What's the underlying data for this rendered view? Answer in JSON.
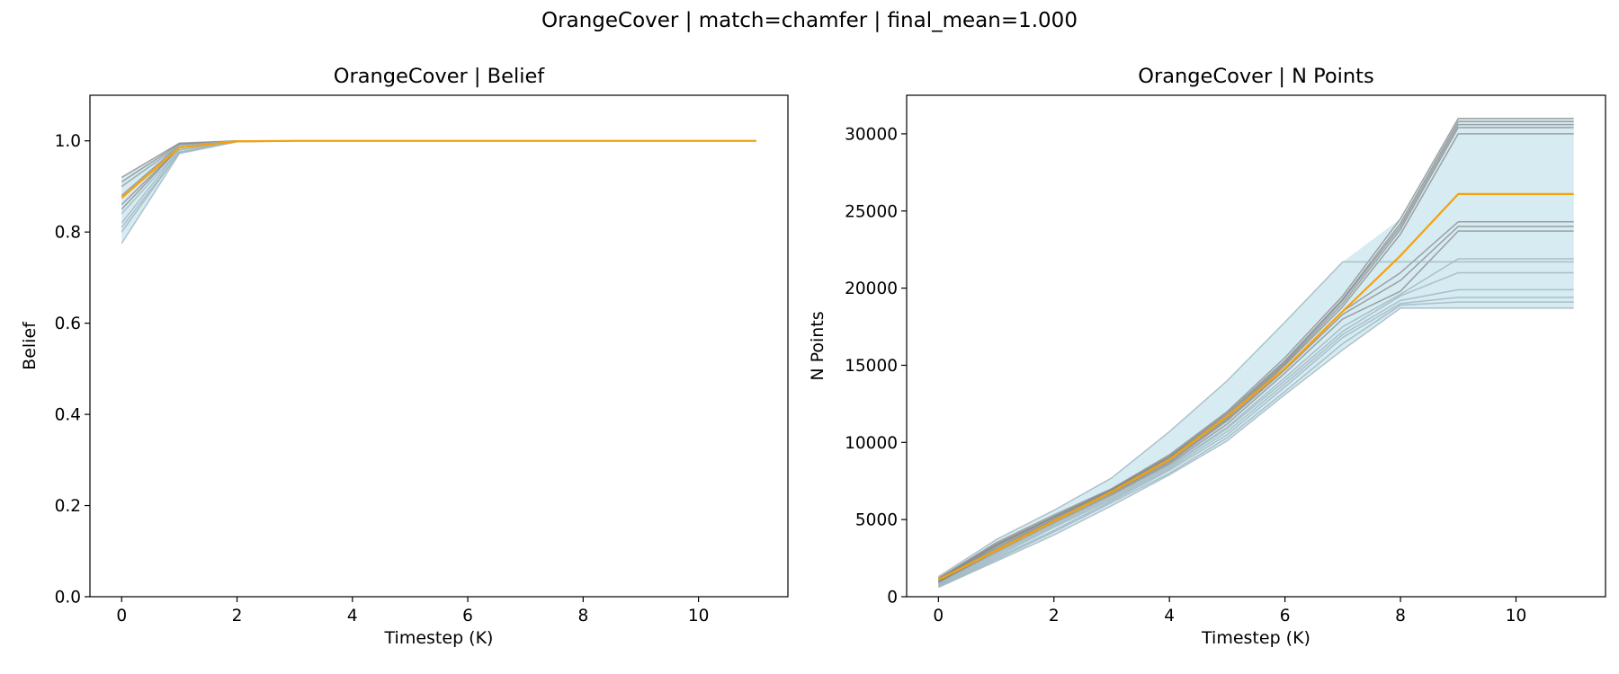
{
  "suptitle": "OrangeCover | match=chamfer | final_mean=1.000",
  "colors": {
    "mean": "#f5a20a",
    "individual_grey": "#808080",
    "individual_blue": "#9db5bf",
    "band_fill": "#add8e6"
  },
  "chart_data": [
    {
      "type": "line",
      "title": "OrangeCover | Belief",
      "xlabel": "Timestep (K)",
      "ylabel": "Belief",
      "xlim": [
        -0.55,
        11.55
      ],
      "ylim": [
        0.0,
        1.1
      ],
      "xticks": [
        0,
        2,
        4,
        6,
        8,
        10
      ],
      "yticks": [
        0.0,
        0.2,
        0.4,
        0.6,
        0.8,
        1.0
      ],
      "ytick_labels": [
        "0.0",
        "0.2",
        "0.4",
        "0.6",
        "0.8",
        "1.0"
      ],
      "x": [
        0,
        1,
        2,
        3,
        4,
        5,
        6,
        7,
        8,
        9,
        10,
        11
      ],
      "band": {
        "lower": [
          0.775,
          0.972,
          0.998,
          1.0,
          1.0,
          1.0,
          1.0,
          1.0,
          1.0,
          1.0,
          1.0,
          1.0
        ],
        "upper": [
          0.92,
          0.995,
          1.0,
          1.0,
          1.0,
          1.0,
          1.0,
          1.0,
          1.0,
          1.0,
          1.0,
          1.0
        ]
      },
      "runs": [
        {
          "style": "grey",
          "values": [
            0.92,
            0.995,
            1.0,
            1.0,
            1.0,
            1.0,
            1.0,
            1.0,
            1.0,
            1.0,
            1.0,
            1.0
          ]
        },
        {
          "style": "grey",
          "values": [
            0.91,
            0.993,
            1.0,
            1.0,
            1.0,
            1.0,
            1.0,
            1.0,
            1.0,
            1.0,
            1.0,
            1.0
          ]
        },
        {
          "style": "grey",
          "values": [
            0.9,
            0.99,
            1.0,
            1.0,
            1.0,
            1.0,
            1.0,
            1.0,
            1.0,
            1.0,
            1.0,
            1.0
          ]
        },
        {
          "style": "grey",
          "values": [
            0.88,
            0.99,
            1.0,
            1.0,
            1.0,
            1.0,
            1.0,
            1.0,
            1.0,
            1.0,
            1.0,
            1.0
          ]
        },
        {
          "style": "grey",
          "values": [
            0.86,
            0.985,
            1.0,
            1.0,
            1.0,
            1.0,
            1.0,
            1.0,
            1.0,
            1.0,
            1.0,
            1.0
          ]
        },
        {
          "style": "grey",
          "values": [
            0.85,
            0.985,
            1.0,
            1.0,
            1.0,
            1.0,
            1.0,
            1.0,
            1.0,
            1.0,
            1.0,
            1.0
          ]
        },
        {
          "style": "blue",
          "values": [
            0.9,
            0.99,
            1.0,
            1.0,
            1.0,
            1.0,
            1.0,
            1.0,
            1.0,
            1.0,
            1.0,
            1.0
          ]
        },
        {
          "style": "blue",
          "values": [
            0.84,
            0.98,
            1.0,
            1.0,
            1.0,
            1.0,
            1.0,
            1.0,
            1.0,
            1.0,
            1.0,
            1.0
          ]
        },
        {
          "style": "blue",
          "values": [
            0.82,
            0.98,
            0.999,
            1.0,
            1.0,
            1.0,
            1.0,
            1.0,
            1.0,
            1.0,
            1.0,
            1.0
          ]
        },
        {
          "style": "blue",
          "values": [
            0.81,
            0.975,
            0.999,
            1.0,
            1.0,
            1.0,
            1.0,
            1.0,
            1.0,
            1.0,
            1.0,
            1.0
          ]
        },
        {
          "style": "blue",
          "values": [
            0.8,
            0.975,
            0.998,
            1.0,
            1.0,
            1.0,
            1.0,
            1.0,
            1.0,
            1.0,
            1.0,
            1.0
          ]
        },
        {
          "style": "blue",
          "values": [
            0.775,
            0.972,
            0.998,
            1.0,
            1.0,
            1.0,
            1.0,
            1.0,
            1.0,
            1.0,
            1.0,
            1.0
          ]
        }
      ],
      "mean": [
        0.875,
        0.985,
        0.999,
        1.0,
        1.0,
        1.0,
        1.0,
        1.0,
        1.0,
        1.0,
        1.0,
        1.0
      ]
    },
    {
      "type": "line",
      "title": "OrangeCover | N Points",
      "xlabel": "Timestep (K)",
      "ylabel": "N Points",
      "xlim": [
        -0.55,
        11.55
      ],
      "ylim": [
        0,
        32500
      ],
      "xticks": [
        0,
        2,
        4,
        6,
        8,
        10
      ],
      "yticks": [
        0,
        5000,
        10000,
        15000,
        20000,
        25000,
        30000
      ],
      "ytick_labels": [
        "0",
        "5000",
        "10000",
        "15000",
        "20000",
        "25000",
        "30000"
      ],
      "x": [
        0,
        1,
        2,
        3,
        4,
        5,
        6,
        7,
        8,
        9,
        10,
        11
      ],
      "band": {
        "lower": [
          600,
          2300,
          4000,
          5900,
          7900,
          10100,
          13100,
          16000,
          18700,
          18700,
          18700,
          18700
        ],
        "upper": [
          1300,
          3700,
          5600,
          7700,
          10700,
          14000,
          17800,
          21700,
          24500,
          31000,
          31000,
          31000
        ]
      },
      "runs": [
        {
          "style": "grey",
          "values": [
            1200,
            3500,
            5300,
            7000,
            9200,
            12000,
            15500,
            19500,
            24500,
            31000,
            31000,
            31000
          ]
        },
        {
          "style": "grey",
          "values": [
            1150,
            3400,
            5200,
            6950,
            9100,
            11900,
            15300,
            19300,
            24200,
            30800,
            30800,
            30800
          ]
        },
        {
          "style": "grey",
          "values": [
            1100,
            3350,
            5150,
            6900,
            9050,
            11800,
            15200,
            19200,
            24000,
            30600,
            30600,
            30600
          ]
        },
        {
          "style": "grey",
          "values": [
            1050,
            3300,
            5100,
            6850,
            9000,
            11700,
            15100,
            19000,
            23800,
            30400,
            30400,
            30400
          ]
        },
        {
          "style": "grey",
          "values": [
            1000,
            3200,
            5000,
            6800,
            8900,
            11600,
            15000,
            18800,
            23500,
            30000,
            30000,
            30000
          ]
        },
        {
          "style": "grey",
          "values": [
            1000,
            3100,
            4950,
            6750,
            8800,
            11500,
            14800,
            18500,
            21000,
            24300,
            24300,
            24300
          ]
        },
        {
          "style": "grey",
          "values": [
            950,
            3000,
            4900,
            6700,
            8700,
            11400,
            14700,
            18300,
            20500,
            24000,
            24000,
            24000
          ]
        },
        {
          "style": "grey",
          "values": [
            900,
            2900,
            4800,
            6600,
            8600,
            11200,
            14500,
            18000,
            19800,
            23700,
            23700,
            23700
          ]
        },
        {
          "style": "blue",
          "values": [
            1300,
            3700,
            5600,
            7700,
            10700,
            14000,
            17800,
            21700,
            21700,
            21700,
            21700,
            21700
          ]
        },
        {
          "style": "blue",
          "values": [
            850,
            2800,
            4700,
            6500,
            8500,
            11000,
            14200,
            17500,
            19600,
            21900,
            21900,
            21900
          ]
        },
        {
          "style": "blue",
          "values": [
            800,
            2700,
            4600,
            6400,
            8400,
            10900,
            14000,
            17200,
            19500,
            21000,
            21000,
            21000
          ]
        },
        {
          "style": "blue",
          "values": [
            750,
            2600,
            4500,
            6300,
            8300,
            10700,
            13800,
            17000,
            19200,
            19900,
            19900,
            19900
          ]
        },
        {
          "style": "blue",
          "values": [
            700,
            2500,
            4300,
            6200,
            8200,
            10500,
            13600,
            16800,
            19000,
            19400,
            19400,
            19400
          ]
        },
        {
          "style": "blue",
          "values": [
            650,
            2400,
            4200,
            6100,
            8000,
            10300,
            13300,
            16400,
            18900,
            19100,
            19100,
            19100
          ]
        },
        {
          "style": "blue",
          "values": [
            600,
            2300,
            4000,
            5900,
            7900,
            10100,
            13100,
            16000,
            18700,
            18700,
            18700,
            18700
          ]
        }
      ],
      "mean": [
        1100,
        3000,
        4900,
        6800,
        8900,
        11700,
        14800,
        18500,
        22100,
        26100,
        26100,
        26100
      ]
    }
  ]
}
